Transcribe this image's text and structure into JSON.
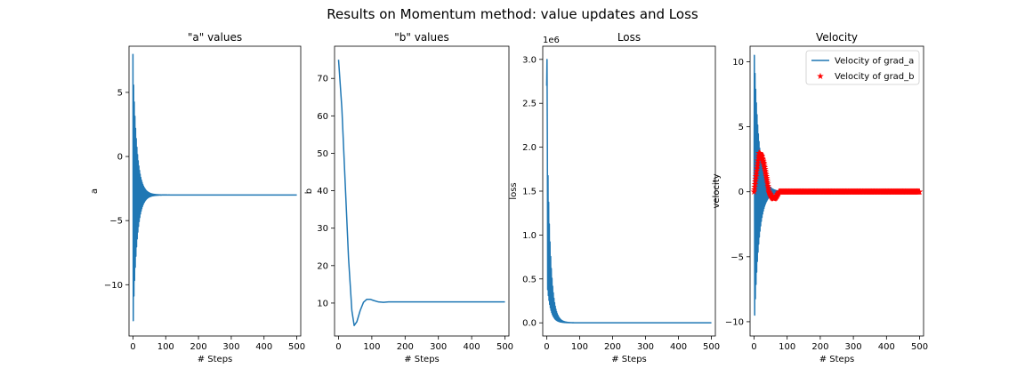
{
  "figure": {
    "suptitle": "Results on Momentum method: value updates and Loss"
  },
  "colors": {
    "series_blue": "#1f77b4",
    "series_red": "#ff0000"
  },
  "chart_data": [
    {
      "type": "line",
      "title": "\"a\" values",
      "xlabel": "# Steps",
      "ylabel": "a",
      "xlim": [
        -12,
        512
      ],
      "ylim": [
        -14,
        8.6
      ],
      "xticks": [
        0,
        100,
        200,
        300,
        400,
        500
      ],
      "yticks": [
        -10,
        -5,
        0,
        5
      ],
      "ytick_labels": [
        "−10",
        "−5",
        "0",
        "5"
      ],
      "series": [
        {
          "style": "damped-oscillation",
          "steps": 500,
          "initial": 8.0,
          "first_swing": -12.8,
          "final": -3.0,
          "decay_steps": 12,
          "color": "#1f77b4"
        }
      ]
    },
    {
      "type": "line",
      "title": "\"b\" values",
      "xlabel": "# Steps",
      "ylabel": "b",
      "xlim": [
        -12,
        512
      ],
      "ylim": [
        1.2,
        78.6
      ],
      "xticks": [
        0,
        100,
        200,
        300,
        400,
        500
      ],
      "yticks": [
        10,
        20,
        30,
        40,
        50,
        60,
        70
      ],
      "series": [
        {
          "x": [
            0,
            10,
            20,
            30,
            40,
            47,
            55,
            65,
            75,
            85,
            95,
            105,
            120,
            135,
            150,
            170,
            200,
            300,
            400,
            500
          ],
          "y": [
            75,
            62,
            42,
            22,
            8,
            4,
            5,
            8,
            10.2,
            11.0,
            11.0,
            10.7,
            10.3,
            10.2,
            10.3,
            10.3,
            10.3,
            10.3,
            10.3,
            10.3
          ],
          "color": "#1f77b4"
        }
      ]
    },
    {
      "type": "line",
      "title": "Loss",
      "xlabel": "# Steps",
      "ylabel": "loss",
      "offset_label": "1e6",
      "xlim": [
        -12,
        512
      ],
      "ylim": [
        -0.15,
        3.15
      ],
      "xticks": [
        0,
        100,
        200,
        300,
        400,
        500
      ],
      "yticks": [
        0.0,
        0.5,
        1.0,
        1.5,
        2.0,
        2.5,
        3.0
      ],
      "ytick_labels": [
        "0.0",
        "0.5",
        "1.0",
        "1.5",
        "2.0",
        "2.5",
        "3.0"
      ],
      "series": [
        {
          "style": "oscillating-decay",
          "steps": 500,
          "peak": 3.0,
          "color": "#1f77b4"
        }
      ]
    },
    {
      "type": "line",
      "title": "Velocity",
      "xlabel": "# Steps",
      "ylabel": "velocity",
      "xlim": [
        -12,
        512
      ],
      "ylim": [
        -11.1,
        11.2
      ],
      "xticks": [
        0,
        100,
        200,
        300,
        400,
        500
      ],
      "yticks": [
        -10,
        -5,
        0,
        5,
        10
      ],
      "ytick_labels": [
        "−10",
        "−5",
        "0",
        "5",
        "10"
      ],
      "legend": {
        "placement": "upper-right",
        "entries": [
          "Velocity of grad_a",
          "Velocity of grad_b"
        ]
      },
      "series": [
        {
          "name": "Velocity of grad_a",
          "style": "damped-oscillation",
          "steps": 500,
          "first_swing": 10.5,
          "second_swing": -10.2,
          "decay_steps": 14,
          "final": 0,
          "color": "#1f77b4"
        },
        {
          "name": "Velocity of grad_b",
          "style": "star-markers",
          "steps": 500,
          "peak": 3.0,
          "peak_step": 15,
          "dip": -0.5,
          "final": 0,
          "color": "#ff0000"
        }
      ]
    }
  ]
}
